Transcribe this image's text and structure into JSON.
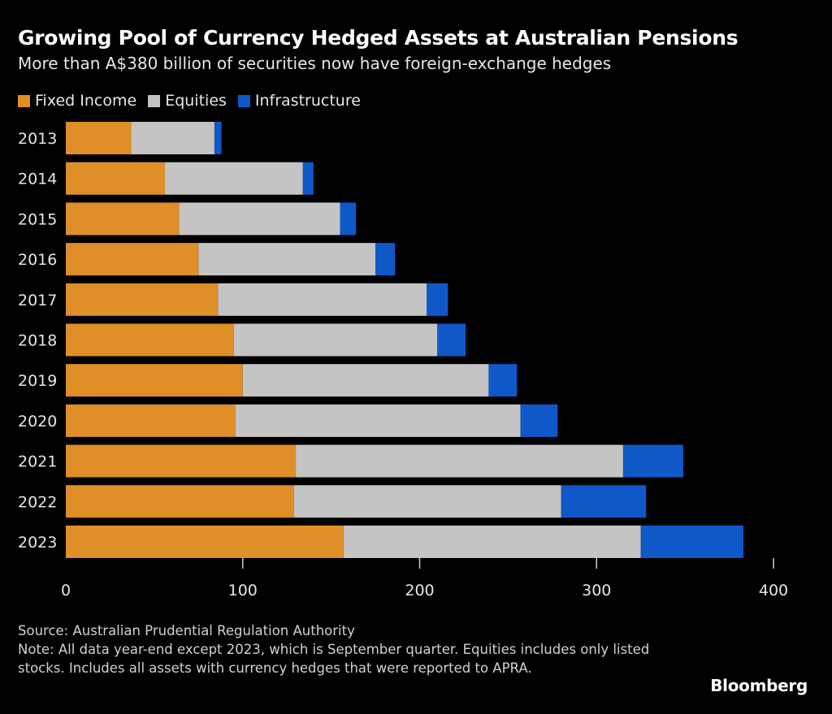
{
  "title": "Growing Pool of Currency Hedged Assets at Australian Pensions",
  "subtitle": "More than A$380 billion of securities now have foreign-exchange hedges",
  "source": "Source: Australian Prudential Regulation Authority",
  "note": "Note: All data year-end except 2023, which is September quarter. Equities includes only listed stocks. Includes all assets with currency hedges that were reported to APRA.",
  "logo": "Bloomberg",
  "chart_data": {
    "type": "bar",
    "orientation": "horizontal",
    "stacked": true,
    "categories": [
      "2013",
      "2014",
      "2015",
      "2016",
      "2017",
      "2018",
      "2019",
      "2020",
      "2021",
      "2022",
      "2023"
    ],
    "series": [
      {
        "name": "Fixed Income",
        "color": "#e08e28",
        "values": [
          37,
          56,
          64,
          75,
          86,
          95,
          100,
          96,
          130,
          129,
          157
        ]
      },
      {
        "name": "Equities",
        "color": "#c4c4c4",
        "values": [
          47,
          78,
          91,
          100,
          118,
          115,
          139,
          161,
          185,
          151,
          168
        ]
      },
      {
        "name": "Infrastructure",
        "color": "#0f58c8",
        "values": [
          4,
          6,
          9,
          11,
          12,
          16,
          16,
          21,
          34,
          48,
          58
        ]
      }
    ],
    "xlim": [
      0,
      400
    ],
    "xticks": [
      "0",
      "100",
      "200",
      "300",
      "400"
    ],
    "legend": "top-left",
    "grid": false
  }
}
